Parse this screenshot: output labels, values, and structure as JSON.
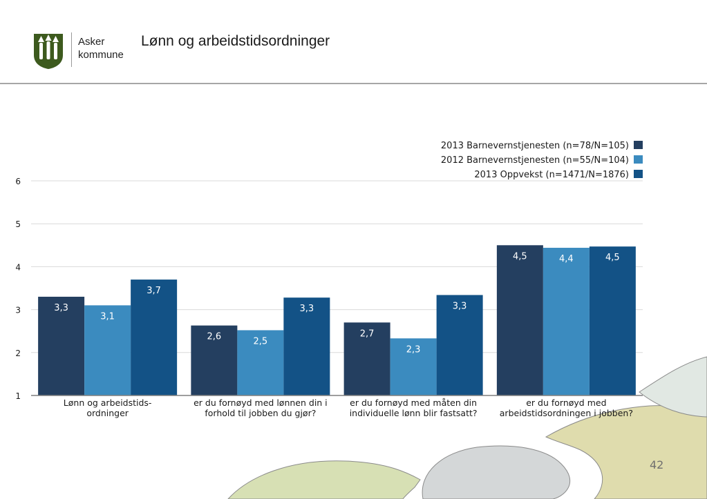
{
  "header": {
    "logo_line1": "Asker",
    "logo_line2": "kommune",
    "title": "Lønn og arbeidstidsordninger"
  },
  "page_number": "42",
  "colors": {
    "series": [
      "#243f60",
      "#3b8bbf",
      "#135286"
    ],
    "grid": "#d9d9d9",
    "axis": "#7f7f7f",
    "logo": "#3d5a1e",
    "blob_green": "#d7e0b4",
    "blob_grey": "#d4d7d8",
    "blob_khaki": "#dfdcad",
    "blob_mint": "#e1e8e3"
  },
  "chart_data": {
    "type": "bar",
    "categories": [
      [
        "Lønn og arbeidstids-",
        "ordninger"
      ],
      [
        "er du fornøyd med lønnen din i",
        "forhold til jobben du gjør?"
      ],
      [
        "er du fornøyd med måten din",
        "individuelle lønn blir fastsatt?"
      ],
      [
        "er du fornøyd med",
        "arbeidstidsordningen i jobben?"
      ]
    ],
    "series": [
      {
        "name": "2013 Barnevernstjenesten (n=78/N=105)",
        "values": [
          3.3,
          2.63,
          2.7,
          4.5
        ],
        "labels": [
          "3,3",
          "2,6",
          "2,7",
          "4,5"
        ]
      },
      {
        "name": "2012 Barnevernstjenesten (n=55/N=104)",
        "values": [
          3.1,
          2.52,
          2.33,
          4.44
        ],
        "labels": [
          "3,1",
          "2,5",
          "2,3",
          "4,4"
        ]
      },
      {
        "name": "2013 Oppvekst (n=1471/N=1876)",
        "values": [
          3.7,
          3.28,
          3.34,
          4.47
        ],
        "labels": [
          "3,7",
          "3,3",
          "3,3",
          "4,5"
        ]
      }
    ],
    "ylim": [
      1,
      6
    ],
    "yticks": [
      "1",
      "2",
      "3",
      "4",
      "5",
      "6"
    ],
    "grid": true,
    "legend_position": "top-right",
    "title": "",
    "xlabel": "",
    "ylabel": ""
  }
}
